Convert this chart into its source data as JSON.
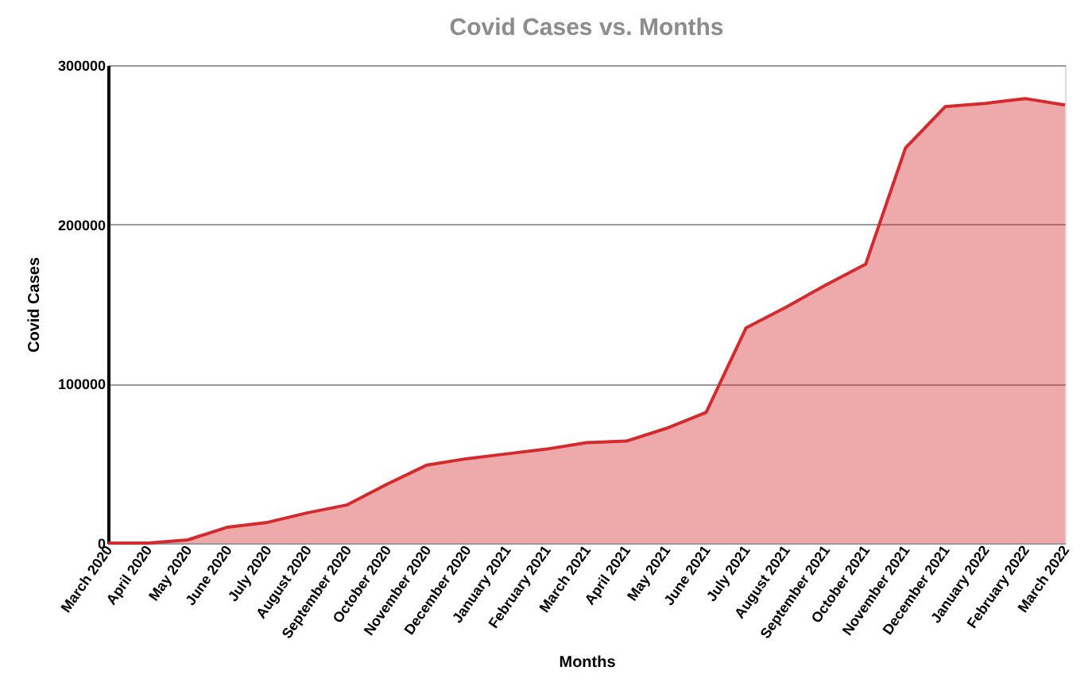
{
  "chart_data": {
    "type": "area",
    "title": "Covid Cases vs. Months",
    "xlabel": "Months",
    "ylabel": "Covid Cases",
    "categories": [
      "March 2020",
      "April 2020",
      "May 2020",
      "June 2020",
      "July 2020",
      "August 2020",
      "September 2020",
      "October 2020",
      "November 2020",
      "December 2020",
      "January 2021",
      "February 2021",
      "March 2021",
      "April 2021",
      "May 2021",
      "June 2021",
      "July 2021",
      "August 2021",
      "September 2021",
      "October 2021",
      "November 2021",
      "December 2021",
      "January 2022",
      "February 2022",
      "March 2022"
    ],
    "series": [
      {
        "color": "#d42a2e",
        "values": [
          0,
          0,
          2000,
          10000,
          13000,
          19000,
          24000,
          37000,
          49000,
          53000,
          56000,
          59000,
          63000,
          64000,
          72000,
          82000,
          135000,
          148000,
          162000,
          175000,
          248000,
          274000,
          276000,
          279000,
          275000
        ]
      }
    ],
    "ylim": [
      0,
      300000
    ],
    "yticks": [
      0,
      100000,
      200000,
      300000
    ],
    "grid": "y"
  }
}
